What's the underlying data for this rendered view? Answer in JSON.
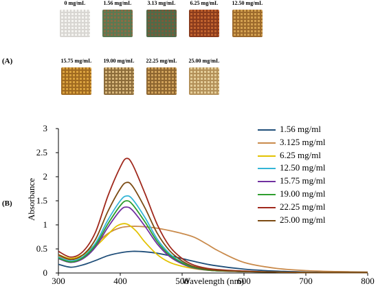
{
  "panel_a_label": "(A)",
  "panel_b_label": "(B)",
  "samples": [
    {
      "label": "0 mg/mL",
      "color": "#f4f3f0",
      "weave": "#d8d6d2"
    },
    {
      "label": "1.56 mg/mL",
      "color": "#8b6b45",
      "weave": "#5a7a52"
    },
    {
      "label": "3.13 mg/mL",
      "color": "#7a5a3a",
      "weave": "#4f6b48"
    },
    {
      "label": "6.25 mg/mL",
      "color": "#c0622e",
      "weave": "#8a3b1c"
    },
    {
      "label": "12.50 mg/mL",
      "color": "#d3a050",
      "weave": "#9c6a2c"
    },
    {
      "label": "15.75 mg/mL",
      "color": "#d9a13e",
      "weave": "#a06a20"
    },
    {
      "label": "19.00 mg/mL",
      "color": "#d6b57a",
      "weave": "#8c6c3a"
    },
    {
      "label": "22.25 mg/mL",
      "color": "#cfa15a",
      "weave": "#8e6630"
    },
    {
      "label": "25.00 mg/mL",
      "color": "#e3cc98",
      "weave": "#b39058"
    }
  ],
  "chart_data": {
    "type": "line",
    "xlabel": "Wavelength (nm)",
    "ylabel": "Absorbance",
    "xlim": [
      300,
      800
    ],
    "ylim": [
      0,
      3
    ],
    "xticks": [
      "300",
      "400",
      "500",
      "600",
      "700",
      "800"
    ],
    "yticks": [
      "0",
      "0.5",
      "1",
      "1.5",
      "2",
      "2.5",
      "3"
    ],
    "legend_position": "right",
    "series": [
      {
        "name": "1.56 mg/ml",
        "color": "#1f4e79",
        "x": [
          300,
          320,
          340,
          360,
          380,
          400,
          420,
          440,
          460,
          480,
          500,
          520,
          550,
          600,
          650,
          700,
          750,
          800
        ],
        "y": [
          0.18,
          0.12,
          0.17,
          0.26,
          0.36,
          0.42,
          0.45,
          0.44,
          0.41,
          0.36,
          0.3,
          0.24,
          0.16,
          0.08,
          0.04,
          0.02,
          0.01,
          0.01
        ]
      },
      {
        "name": "3.125 mg/ml",
        "color": "#c98a4b",
        "x": [
          300,
          320,
          340,
          360,
          380,
          400,
          420,
          440,
          460,
          480,
          500,
          520,
          540,
          560,
          600,
          650,
          700,
          750,
          800
        ],
        "y": [
          0.35,
          0.28,
          0.38,
          0.6,
          0.82,
          0.94,
          0.97,
          0.96,
          0.93,
          0.88,
          0.82,
          0.74,
          0.6,
          0.45,
          0.22,
          0.1,
          0.05,
          0.03,
          0.02
        ]
      },
      {
        "name": "6.25 mg/ml",
        "color": "#e2c200",
        "x": [
          300,
          320,
          340,
          360,
          380,
          395,
          410,
          425,
          440,
          460,
          480,
          500,
          520,
          550,
          600,
          650,
          700,
          750,
          800
        ],
        "y": [
          0.38,
          0.3,
          0.38,
          0.55,
          0.8,
          0.98,
          1.02,
          0.88,
          0.64,
          0.38,
          0.22,
          0.14,
          0.09,
          0.05,
          0.03,
          0.02,
          0.01,
          0.01,
          0.01
        ]
      },
      {
        "name": "12.50 mg/ml",
        "color": "#33b5d6",
        "x": [
          300,
          320,
          340,
          360,
          380,
          400,
          410,
          420,
          440,
          460,
          480,
          500,
          520,
          550,
          600,
          650,
          700,
          750,
          800
        ],
        "y": [
          0.33,
          0.25,
          0.34,
          0.62,
          1.1,
          1.5,
          1.6,
          1.53,
          1.15,
          0.7,
          0.4,
          0.22,
          0.12,
          0.06,
          0.03,
          0.02,
          0.01,
          0.01,
          0.01
        ]
      },
      {
        "name": "15.75 mg/ml",
        "color": "#7030a0",
        "x": [
          300,
          320,
          340,
          360,
          380,
          400,
          410,
          420,
          440,
          460,
          480,
          500,
          520,
          550,
          600,
          650,
          700,
          750,
          800
        ],
        "y": [
          0.3,
          0.22,
          0.3,
          0.54,
          0.95,
          1.3,
          1.37,
          1.3,
          0.97,
          0.6,
          0.34,
          0.19,
          0.1,
          0.05,
          0.03,
          0.02,
          0.01,
          0.01,
          0.01
        ]
      },
      {
        "name": "19.00 mg/ml",
        "color": "#2e9e2e",
        "x": [
          300,
          320,
          340,
          360,
          380,
          400,
          410,
          420,
          440,
          460,
          480,
          500,
          520,
          550,
          600,
          650,
          700,
          750,
          800
        ],
        "y": [
          0.31,
          0.23,
          0.32,
          0.58,
          1.02,
          1.4,
          1.5,
          1.42,
          1.06,
          0.65,
          0.37,
          0.21,
          0.11,
          0.05,
          0.03,
          0.02,
          0.01,
          0.01,
          0.01
        ]
      },
      {
        "name": "22.25 mg/ml",
        "color": "#a0281c",
        "x": [
          300,
          320,
          340,
          360,
          380,
          400,
          410,
          420,
          440,
          460,
          480,
          500,
          520,
          550,
          600,
          650,
          700,
          750,
          800
        ],
        "y": [
          0.45,
          0.33,
          0.45,
          0.85,
          1.6,
          2.2,
          2.38,
          2.25,
          1.65,
          1.0,
          0.55,
          0.3,
          0.16,
          0.08,
          0.04,
          0.02,
          0.01,
          0.01,
          0.01
        ]
      },
      {
        "name": "25.00 mg/ml",
        "color": "#7b4a12",
        "x": [
          300,
          320,
          340,
          360,
          380,
          400,
          410,
          420,
          440,
          460,
          480,
          500,
          520,
          550,
          600,
          650,
          700,
          750,
          800
        ],
        "y": [
          0.38,
          0.28,
          0.38,
          0.7,
          1.28,
          1.75,
          1.88,
          1.8,
          1.35,
          0.82,
          0.46,
          0.25,
          0.13,
          0.06,
          0.03,
          0.02,
          0.01,
          0.01,
          0.01
        ]
      }
    ]
  }
}
